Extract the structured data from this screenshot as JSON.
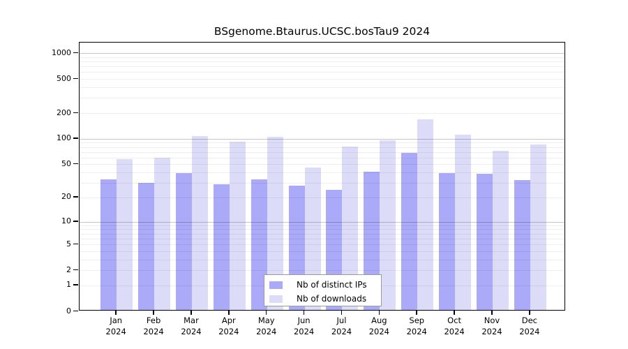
{
  "title": "BSgenome.Btaurus.UCSC.bosTau9 2024",
  "legend": {
    "ips_label": "Nb of distinct IPs",
    "downloads_label": "Nb of downloads"
  },
  "colors": {
    "ips_bar": "#aaaaf8",
    "downloads_bar": "#dcdcf8",
    "major_grid": "#c8c8c8",
    "minor_grid": "#ededed"
  },
  "y_axis": {
    "tick_values": [
      1000,
      500,
      200,
      100,
      50,
      20,
      10,
      5,
      2,
      1,
      0
    ],
    "tick_labels": [
      "1000",
      "500",
      "200",
      "100",
      "50",
      "20",
      "10",
      "5",
      "2",
      "1",
      "0"
    ]
  },
  "x_axis": {
    "months": [
      "Jan",
      "Feb",
      "Mar",
      "Apr",
      "May",
      "Jun",
      "Jul",
      "Aug",
      "Sep",
      "Oct",
      "Nov",
      "Dec"
    ],
    "year": "2024"
  },
  "chart_data": {
    "type": "bar",
    "title": "BSgenome.Btaurus.UCSC.bosTau9 2024",
    "scale": "log1p",
    "ylim": [
      0,
      1000
    ],
    "grid": "horizontal log minor lines, darker lines at decades",
    "legend_position": "bottom-center inside plot",
    "categories": [
      "Jan 2024",
      "Feb 2024",
      "Mar 2024",
      "Apr 2024",
      "May 2024",
      "Jun 2024",
      "Jul 2024",
      "Aug 2024",
      "Sep 2024",
      "Oct 2024",
      "Nov 2024",
      "Dec 2024"
    ],
    "series": [
      {
        "name": "Nb of distinct IPs",
        "values": [
          32,
          29,
          38,
          28,
          32,
          27,
          24,
          39,
          66,
          38,
          37,
          31
        ]
      },
      {
        "name": "Nb of downloads",
        "values": [
          56,
          58,
          103,
          89,
          102,
          44,
          78,
          93,
          162,
          108,
          70,
          83
        ]
      }
    ]
  }
}
